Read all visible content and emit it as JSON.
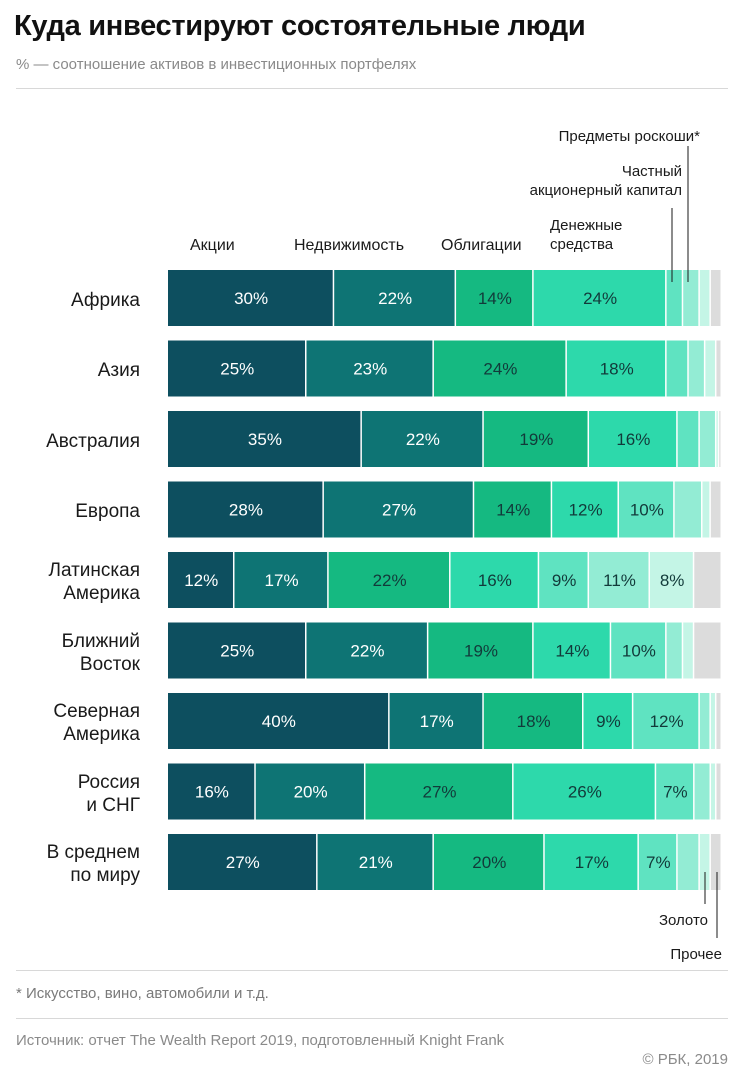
{
  "title": "Куда инвестируют состоятельные люди",
  "subtitle": "% — соотношение активов в инвестиционных портфелях",
  "footnote": "* Искусство, вино, автомобили и т.д.",
  "source": "Источник: отчет The Wealth Report 2019, подготовленный Knight Frank",
  "copyright": "© РБК, 2019",
  "annotations": {
    "luxury": "Предметы роскоши*",
    "private_equity": "Частный\nакционерный капитал",
    "cash": "Денежные\nсредства",
    "gold": "Золото",
    "other": "Прочее"
  },
  "chart_data": {
    "type": "bar",
    "orientation": "horizontal",
    "stacked": true,
    "categories": [
      "Африка",
      "Азия",
      "Австралия",
      "Европа",
      "Латинская\nАмерика",
      "Ближний\nВосток",
      "Северная\nАмерика",
      "Россия\nи СНГ",
      "В среднем\nпо миру"
    ],
    "series": [
      {
        "name": "Акции",
        "color": "#0d4f5f",
        "values": [
          30,
          25,
          35,
          28,
          12,
          25,
          40,
          16,
          27
        ],
        "labels": [
          "30%",
          "25%",
          "35%",
          "28%",
          "12%",
          "25%",
          "40%",
          "16%",
          "27%"
        ]
      },
      {
        "name": "Недвижимость",
        "color": "#0e7474",
        "values": [
          22,
          23,
          22,
          27,
          17,
          22,
          17,
          20,
          21
        ],
        "labels": [
          "22%",
          "23%",
          "22%",
          "27%",
          "17%",
          "22%",
          "17%",
          "20%",
          "21%"
        ]
      },
      {
        "name": "Облигации",
        "color": "#15b981",
        "values": [
          14,
          24,
          19,
          14,
          22,
          19,
          18,
          27,
          20
        ],
        "labels": [
          "14%",
          "24%",
          "19%",
          "14%",
          "22%",
          "19%",
          "18%",
          "27%",
          "20%"
        ]
      },
      {
        "name": "Денежные средства",
        "color": "#2dd9ab",
        "values": [
          24,
          18,
          16,
          12,
          16,
          14,
          9,
          26,
          17
        ],
        "labels": [
          "24%",
          "18%",
          "16%",
          "12%",
          "16%",
          "14%",
          "9%",
          "26%",
          "17%"
        ]
      },
      {
        "name": "Частный акционерный капитал",
        "color": "#5fe3c1",
        "values": [
          3,
          4,
          4,
          10,
          9,
          10,
          12,
          7,
          7
        ],
        "labels": [
          "",
          "",
          "",
          "10%",
          "9%",
          "10%",
          "12%",
          "7%",
          "7%"
        ]
      },
      {
        "name": "Предметы роскоши*",
        "color": "#93ecd4",
        "values": [
          3,
          3,
          3,
          5,
          11,
          3,
          2,
          3,
          4
        ],
        "labels": [
          "",
          "",
          "",
          "",
          "11%",
          "",
          "",
          "",
          ""
        ]
      },
      {
        "name": "Золото",
        "color": "#c4f5e6",
        "values": [
          2,
          2,
          0.5,
          1.5,
          8,
          2,
          1,
          1,
          2
        ],
        "labels": [
          "",
          "",
          "",
          "",
          "8%",
          "",
          "",
          "",
          ""
        ]
      },
      {
        "name": "Прочее",
        "color": "#dcdcdc",
        "values": [
          2,
          1,
          0.5,
          2,
          5,
          5,
          1,
          1,
          2
        ],
        "labels": [
          "",
          "",
          "",
          "",
          "",
          "",
          "",
          "",
          ""
        ]
      }
    ],
    "legend_position": "top",
    "xlim": [
      0,
      100
    ]
  }
}
